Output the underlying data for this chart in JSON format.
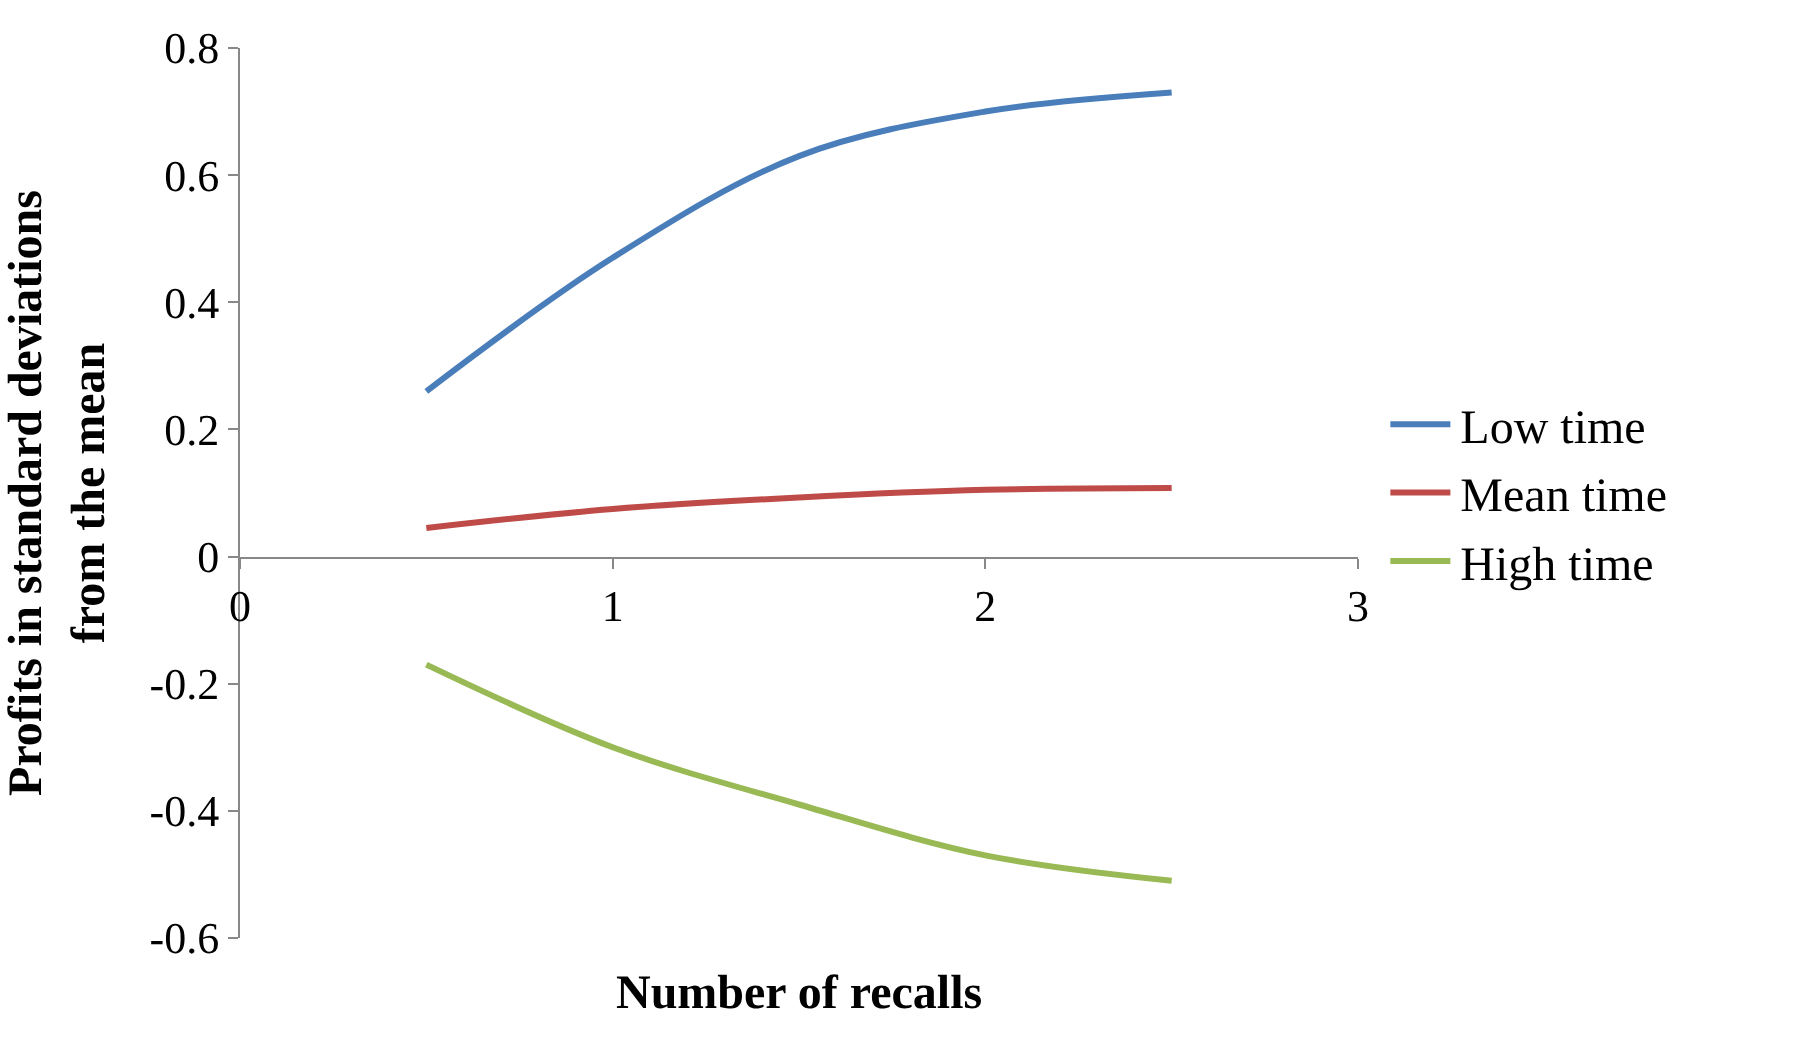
{
  "chart_data": {
    "type": "line",
    "xlabel": "Number of recalls",
    "ylabel": "Profits in standard deviations from the mean",
    "x": [
      0.5,
      1,
      1.5,
      2,
      2.5
    ],
    "series": [
      {
        "name": "Low time",
        "color": "#4a7ebb",
        "values": [
          0.26,
          0.47,
          0.63,
          0.7,
          0.73
        ]
      },
      {
        "name": "Mean time",
        "color": "#be4b48",
        "values": [
          0.045,
          0.075,
          0.093,
          0.105,
          0.108
        ]
      },
      {
        "name": "High time",
        "color": "#98b954",
        "values": [
          -0.17,
          -0.3,
          -0.39,
          -0.47,
          -0.51
        ]
      }
    ],
    "xlim": [
      0,
      3
    ],
    "xticks": [
      0,
      1,
      2,
      3
    ],
    "ylim": [
      -0.6,
      0.8
    ],
    "yticks": [
      -0.6,
      -0.4,
      -0.2,
      0,
      0.2,
      0.4,
      0.6,
      0.8
    ],
    "legend": "right",
    "marker": "none",
    "line_style": "solid"
  }
}
